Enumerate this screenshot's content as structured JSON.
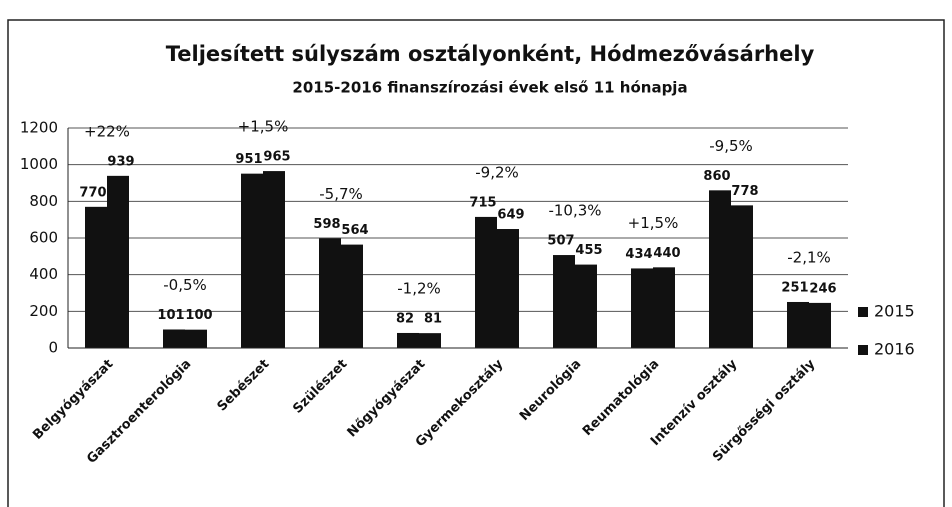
{
  "chart_data": {
    "type": "bar",
    "title": "Teljesített súlyszám osztályonként, Hódmezővásárhely",
    "subtitle": "2015-2016 finanszírozási évek első 11 hónapja",
    "categories": [
      "Belgyógyászat",
      "Gasztroenterológia",
      "Sebészet",
      "Szülészet",
      "Nőgyógyászat",
      "Gyermekosztály",
      "Neurológia",
      "Reumatológia",
      "Intenzív osztály",
      "Sürgősségi osztály"
    ],
    "series": [
      {
        "name": "2015",
        "color": "#111111",
        "values": [
          770,
          101,
          951,
          598,
          82,
          715,
          507,
          434,
          860,
          251
        ]
      },
      {
        "name": "2016",
        "color": "#111111",
        "values": [
          939,
          100,
          965,
          564,
          81,
          649,
          455,
          440,
          778,
          246
        ]
      }
    ],
    "annotations": [
      {
        "category": 0,
        "text": "+22%"
      },
      {
        "category": 1,
        "text": "-0,5%"
      },
      {
        "category": 2,
        "text": "+1,5%"
      },
      {
        "category": 3,
        "text": "-5,7%"
      },
      {
        "category": 4,
        "text": "-1,2%"
      },
      {
        "category": 5,
        "text": "-9,2%"
      },
      {
        "category": 6,
        "text": "-10,3%"
      },
      {
        "category": 7,
        "text": "+1,5%"
      },
      {
        "category": 8,
        "text": "-9,5%"
      },
      {
        "category": 9,
        "text": "-2,1%"
      }
    ],
    "ylim": [
      0,
      1200
    ],
    "yticks": [
      0,
      200,
      400,
      600,
      800,
      1000,
      1200
    ],
    "grid": true,
    "legend": "right"
  }
}
